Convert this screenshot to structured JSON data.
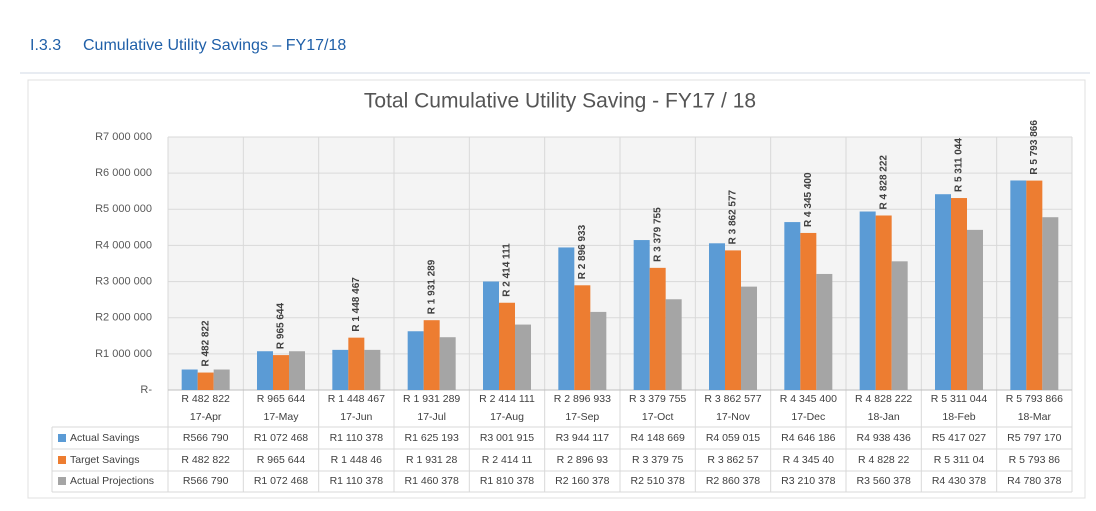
{
  "header": {
    "number": "I.3.3",
    "title": "Cumulative Utility Savings – FY17/18"
  },
  "chart_data": {
    "type": "bar",
    "title": "Total Cumulative Utility Saving - FY17 / 18",
    "categories": [
      "17-Apr",
      "17-May",
      "17-Jun",
      "17-Jul",
      "17-Aug",
      "17-Sep",
      "17-Oct",
      "17-Nov",
      "17-Dec",
      "18-Jan",
      "18-Feb",
      "18-Mar"
    ],
    "ylim": [
      0,
      7000000
    ],
    "yticks": [
      {
        "value": 0,
        "label": "R-"
      },
      {
        "value": 1000000,
        "label": "R1 000 000"
      },
      {
        "value": 2000000,
        "label": "R2 000 000"
      },
      {
        "value": 3000000,
        "label": "R3 000 000"
      },
      {
        "value": 4000000,
        "label": "R4 000 000"
      },
      {
        "value": 5000000,
        "label": "R5 000 000"
      },
      {
        "value": 6000000,
        "label": "R6 000 000"
      },
      {
        "value": 7000000,
        "label": "R7 000 000"
      }
    ],
    "grid": true,
    "series": [
      {
        "name": "Actual Savings",
        "color": "#5b9bd5",
        "values": [
          566790,
          1072468,
          1110378,
          1625193,
          3001915,
          3944117,
          4148669,
          4059015,
          4646186,
          4938436,
          5417027,
          5797170
        ],
        "table_labels": [
          "R566 790",
          "R1 072 468",
          "R1 110 378",
          "R1 625 193",
          "R3 001 915",
          "R3 944 117",
          "R4 148 669",
          "R4 059 015",
          "R4 646 186",
          "R4 938 436",
          "R5 417 027",
          "R5 797 170"
        ]
      },
      {
        "name": "Target Savings",
        "color": "#ed7d31",
        "values": [
          482822,
          965644,
          1448467,
          1931289,
          2414111,
          2896933,
          3379755,
          3862577,
          4345400,
          4828222,
          5311044,
          5793866
        ],
        "value_labels": [
          "R 482 822",
          "R 965 644",
          "R 1 448 467",
          "R 1 931 289",
          "R 2 414 111",
          "R 2 896 933",
          "R 3 379 755",
          "R 3 862 577",
          "R 4 345 400",
          "R 4 828 222",
          "R 5 311 044",
          "R 5 793 866"
        ],
        "table_labels": [
          "R 482 822",
          "R 965 644",
          "R 1 448 46",
          "R 1 931 28",
          "R 2 414 11",
          "R 2 896 93",
          "R 3 379 75",
          "R 3 862 57",
          "R 4 345 40",
          "R 4 828 22",
          "R 5 311 04",
          "R 5 793 86"
        ]
      },
      {
        "name": "Actual Projections",
        "color": "#a5a5a5",
        "values": [
          566790,
          1072468,
          1110378,
          1460378,
          1810378,
          2160378,
          2510378,
          2860378,
          3210378,
          3560378,
          4430378,
          4780378
        ],
        "table_labels": [
          "R566 790",
          "R1 072 468",
          "R1 110 378",
          "R1 460 378",
          "R1 810 378",
          "R2 160 378",
          "R2 510 378",
          "R2 860 378",
          "R3 210 378",
          "R3 560 378",
          "R4 430 378",
          "R4 780 378"
        ]
      }
    ]
  }
}
